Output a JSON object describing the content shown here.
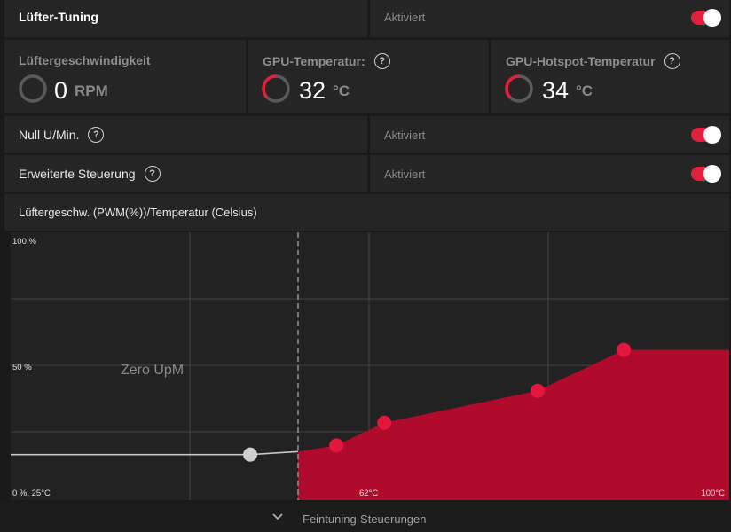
{
  "header": {
    "title": "Lüfter-Tuning",
    "status": "Aktiviert",
    "toggle_on": true
  },
  "stats": {
    "fan_speed": {
      "title": "Lüftergeschwindigkeit",
      "value": "0",
      "unit": "RPM"
    },
    "gpu_temp": {
      "title": "GPU-Temperatur:",
      "value": "32",
      "unit": "°C"
    },
    "gpu_hotspot": {
      "title": "GPU-Hotspot-Temperatur",
      "value": "34",
      "unit": "°C"
    }
  },
  "zero_rpm": {
    "label": "Null U/Min.",
    "status": "Aktiviert",
    "toggle_on": true
  },
  "advanced": {
    "label": "Erweiterte Steuerung",
    "status": "Aktiviert",
    "toggle_on": true
  },
  "chart_header": "Lüftergeschw. (PWM(%))/Temperatur (Celsius)",
  "chart_data": {
    "type": "area",
    "title": "Lüftergeschw. (PWM(%))/Temperatur (Celsius)",
    "xlabel": "",
    "ylabel": "",
    "xlim": [
      25,
      100
    ],
    "ylim": [
      0,
      100
    ],
    "tick_labels": {
      "y_top": "100 %",
      "y_mid": "50 %",
      "origin": "0 %, 25°C",
      "x_mid": "62°C",
      "x_end": "100°C"
    },
    "zero_rpm_label": "Zero UpM",
    "zero_rpm_threshold_temp": 55,
    "disabled_point": {
      "x": 50,
      "y": 20
    },
    "points": [
      {
        "x": 59,
        "y": 24
      },
      {
        "x": 64,
        "y": 34
      },
      {
        "x": 80,
        "y": 48
      },
      {
        "x": 89,
        "y": 66
      }
    ],
    "max_y": 66,
    "colors": {
      "fill": "#b00a2c",
      "point": "#e3173d",
      "line": "#c8c8c8",
      "grid": "#444444"
    }
  },
  "footer": {
    "label": "Feintuning-Steuerungen",
    "icon": "chevron-down-icon"
  }
}
